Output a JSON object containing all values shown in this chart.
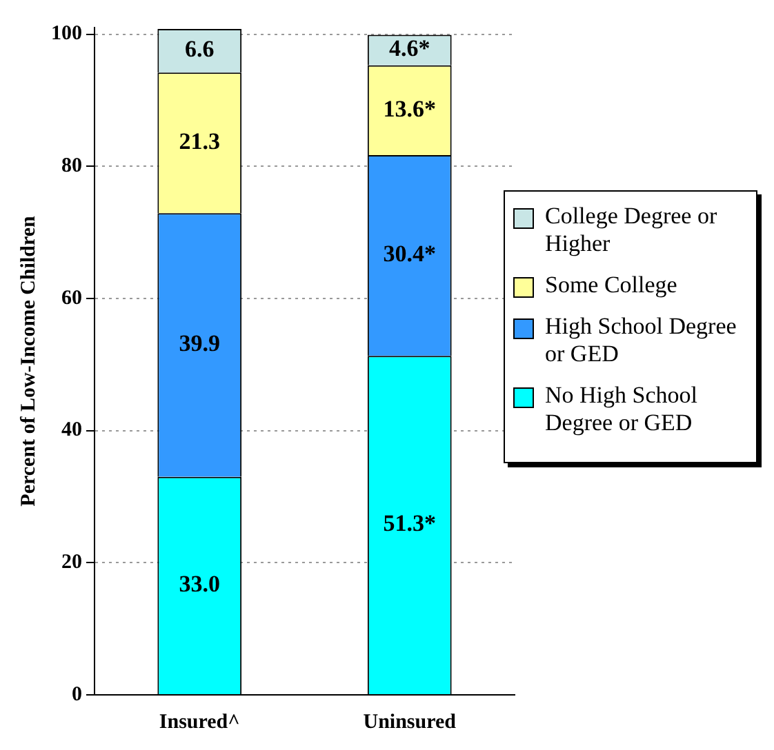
{
  "chart_data": {
    "type": "bar",
    "stacked": true,
    "ylabel": "Percent of Low-Income Children",
    "categories": [
      "Insured^",
      "Uninsured"
    ],
    "series": [
      {
        "name": "No High School Degree or GED",
        "color": "#00ffff",
        "values": [
          33.0,
          51.3
        ],
        "value_labels": [
          "33.0",
          "51.3*"
        ]
      },
      {
        "name": "High School Degree or GED",
        "color": "#3399ff",
        "values": [
          39.9,
          30.4
        ],
        "value_labels": [
          "39.9",
          "30.4*"
        ]
      },
      {
        "name": "Some College",
        "color": "#ffff99",
        "values": [
          21.3,
          13.6
        ],
        "value_labels": [
          "21.3",
          "13.6*"
        ]
      },
      {
        "name": "College Degree or Higher",
        "color": "#c8e6e6",
        "values": [
          6.6,
          4.6
        ],
        "value_labels": [
          "6.6",
          "4.6*"
        ]
      }
    ],
    "ylim": [
      0,
      101
    ],
    "yticks": [
      0,
      20,
      40,
      60,
      80,
      100
    ],
    "grid": "y",
    "legend": "right"
  }
}
